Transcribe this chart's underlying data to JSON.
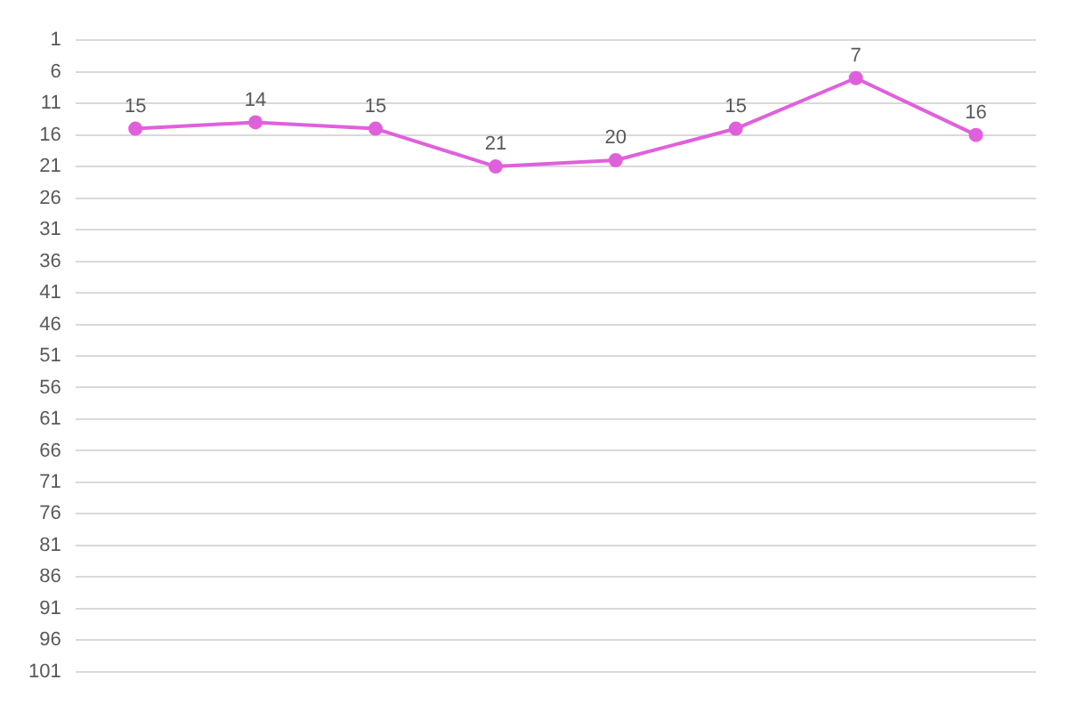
{
  "chart_data": {
    "type": "line",
    "categories": [
      null,
      null,
      null,
      null,
      null,
      null,
      null,
      null
    ],
    "series": [
      {
        "color": "#e060dc",
        "values": [
          15,
          14,
          15,
          21,
          20,
          15,
          7,
          16
        ]
      }
    ],
    "ylim": [
      101,
      1
    ],
    "yticks": [
      1,
      6,
      11,
      16,
      21,
      26,
      31,
      36,
      41,
      46,
      51,
      56,
      61,
      66,
      71,
      76,
      81,
      86,
      91,
      96,
      101
    ],
    "grid": "y",
    "legend": false,
    "marker": "circle",
    "line_style": "solid",
    "data_labels": true,
    "tick_labels": "y"
  }
}
